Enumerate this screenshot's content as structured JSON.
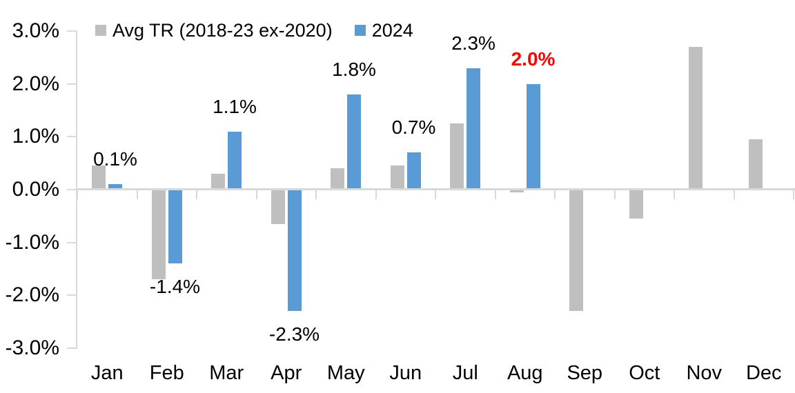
{
  "chart_data": {
    "type": "bar",
    "title": "",
    "categories": [
      "Jan",
      "Feb",
      "Mar",
      "Apr",
      "May",
      "Jun",
      "Jul",
      "Aug",
      "Sep",
      "Oct",
      "Nov",
      "Dec"
    ],
    "series": [
      {
        "name": "Avg TR (2018-23 ex-2020)",
        "color": "#BFBFBF",
        "values": [
          0.45,
          -1.7,
          0.3,
          -0.65,
          0.4,
          0.45,
          1.25,
          -0.05,
          -2.3,
          -0.55,
          2.7,
          0.95
        ]
      },
      {
        "name": "2024",
        "color": "#5B9BD5",
        "values": [
          0.1,
          -1.4,
          1.1,
          -2.3,
          1.8,
          0.7,
          2.3,
          2.0,
          null,
          null,
          null,
          null
        ]
      }
    ],
    "data_labels": [
      {
        "index": 0,
        "text": "0.1%",
        "highlight": false
      },
      {
        "index": 1,
        "text": "-1.4%",
        "highlight": false
      },
      {
        "index": 2,
        "text": "1.1%",
        "highlight": false
      },
      {
        "index": 3,
        "text": "-2.3%",
        "highlight": false
      },
      {
        "index": 4,
        "text": "1.8%",
        "highlight": false
      },
      {
        "index": 5,
        "text": "0.7%",
        "highlight": false
      },
      {
        "index": 6,
        "text": "2.3%",
        "highlight": false
      },
      {
        "index": 7,
        "text": "2.0%",
        "highlight": true
      }
    ],
    "y_ticks": [
      "3.0%",
      "2.0%",
      "1.0%",
      "0.0%",
      "-1.0%",
      "-2.0%",
      "-3.0%"
    ],
    "ylim": [
      -3.0,
      3.0
    ],
    "xlabel": "",
    "ylabel": "",
    "grid": false,
    "legend_position": "top",
    "colors": {
      "axis": "#D9D9D9",
      "text": "#000000",
      "highlight": "#FF0000"
    }
  }
}
